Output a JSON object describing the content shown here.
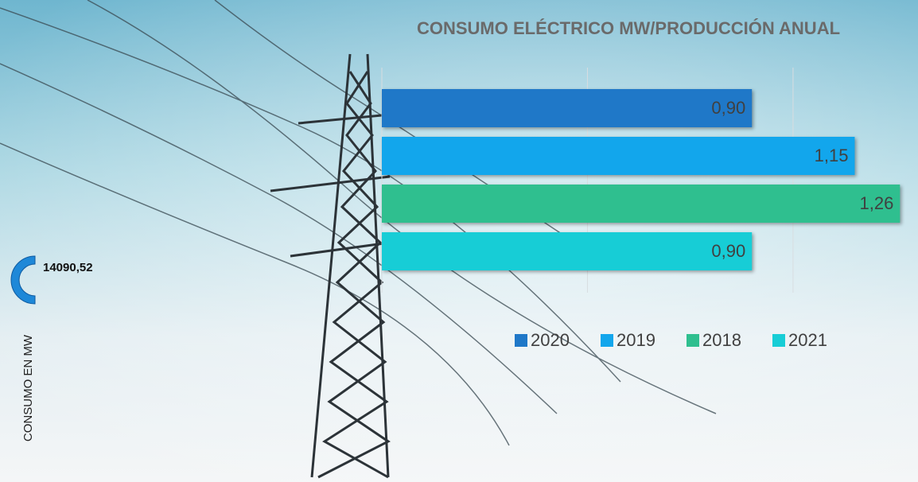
{
  "chart_data": [
    {
      "type": "bar",
      "orientation": "horizontal",
      "title": "CONSUMO ELÉCTRICO  MW/PRODUCCIÓN ANUAL",
      "series": [
        {
          "name": "2020",
          "color": "#1f78c8",
          "values": [
            0.9
          ],
          "value_labels": [
            "0,90"
          ]
        },
        {
          "name": "2019",
          "color": "#12a6ec",
          "values": [
            1.15
          ],
          "value_labels": [
            "1,15"
          ]
        },
        {
          "name": "2018",
          "color": "#2fbf8f",
          "values": [
            1.26
          ],
          "value_labels": [
            "1,26"
          ]
        },
        {
          "name": "2021",
          "color": "#17cdd6",
          "values": [
            0.9
          ],
          "value_labels": [
            "0,90"
          ]
        }
      ],
      "xlim": [
        0,
        1.3
      ],
      "xticks": [
        0,
        0.5,
        1
      ],
      "grid": true,
      "legend": "bottom"
    },
    {
      "type": "gauge",
      "title": "CONSUMO EN MW",
      "values": [
        14090.52
      ],
      "value_labels": [
        "14090,52"
      ],
      "color": "#1e88d8"
    }
  ]
}
